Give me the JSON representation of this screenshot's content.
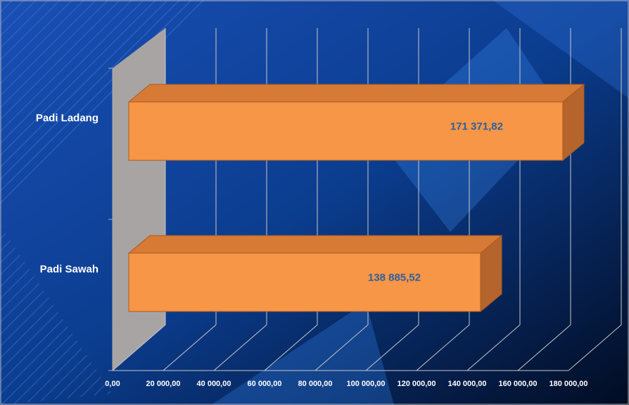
{
  "chart_data": {
    "type": "bar3d",
    "orientation": "horizontal",
    "categories": [
      "Padi Ladang",
      "Padi Sawah"
    ],
    "values": [
      171371.82,
      138885.52
    ],
    "value_labels": [
      "171 371,82",
      "138 885,52"
    ],
    "color": "#f79646",
    "xlim": [
      0,
      180000
    ],
    "xticks": [
      {
        "value": 0,
        "label": "0,00"
      },
      {
        "value": 20000,
        "label": "20 000,00"
      },
      {
        "value": 40000,
        "label": "40 000,00"
      },
      {
        "value": 60000,
        "label": "60 000,00"
      },
      {
        "value": 80000,
        "label": "80 000,00"
      },
      {
        "value": 100000,
        "label": "100 000,00"
      },
      {
        "value": 120000,
        "label": "120 000,00"
      },
      {
        "value": 140000,
        "label": "140 000,00"
      },
      {
        "value": 160000,
        "label": "160 000,00"
      },
      {
        "value": 180000,
        "label": "180 000,00"
      }
    ],
    "grid": true
  }
}
